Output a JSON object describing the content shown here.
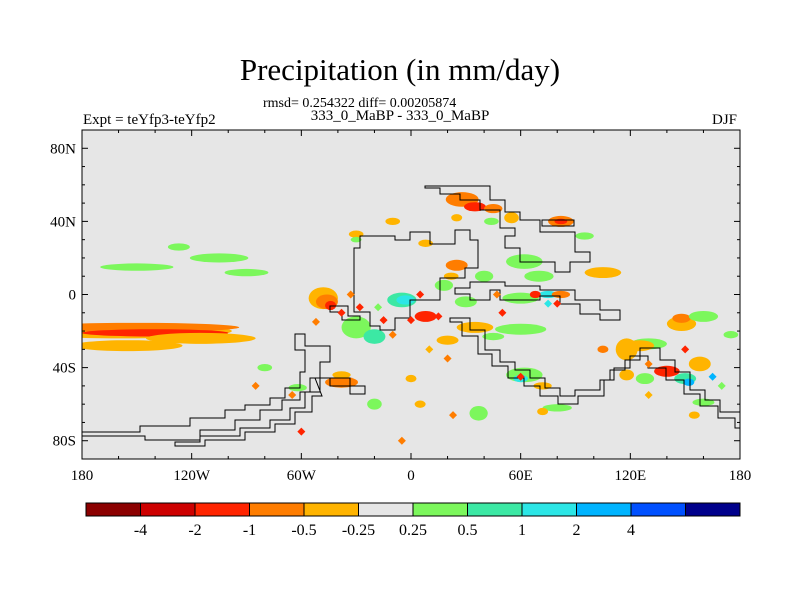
{
  "chart_data": {
    "type": "heatmap",
    "title": "Precipitation (in mm/day)",
    "stats_line": "rmsd= 0.254322 diff= 0.00205874",
    "subtitle": "333_0_MaBP - 333_0_MaBP",
    "left_label": "Expt = teYfp3-teYfp2",
    "right_label": "DJF",
    "xlabel": "",
    "ylabel": "",
    "xlim": [
      -180,
      180
    ],
    "ylim": [
      -90,
      90
    ],
    "x_ticks": [
      {
        "value": -180,
        "label": "180"
      },
      {
        "value": -120,
        "label": "120W"
      },
      {
        "value": -60,
        "label": "60W"
      },
      {
        "value": 0,
        "label": "0"
      },
      {
        "value": 60,
        "label": "60E"
      },
      {
        "value": 120,
        "label": "120E"
      },
      {
        "value": 180,
        "label": "180"
      }
    ],
    "y_ticks": [
      {
        "value": 80,
        "label": "80N"
      },
      {
        "value": 40,
        "label": "40N"
      },
      {
        "value": 0,
        "label": "0"
      },
      {
        "value": -40,
        "label": "40S"
      },
      {
        "value": -80,
        "label": "80S"
      }
    ],
    "background_color": "#e6e6e6",
    "colorbar": {
      "colors": [
        "#8b0000",
        "#cd0000",
        "#ff2400",
        "#ff7d00",
        "#ffb400",
        "#e6e6e6",
        "#7cf75c",
        "#3ce8a4",
        "#2ce6e6",
        "#00b4ff",
        "#0050ff",
        "#00008b"
      ],
      "labels": [
        "-4",
        "-2",
        "-1",
        "-0.5",
        "-0.25",
        "0.25",
        "0.5",
        "1",
        "2",
        "4"
      ]
    },
    "anomaly_patches": [
      {
        "lon": -158,
        "lat": -20,
        "dlon": 60,
        "dlat": 4,
        "color": "#ffb400"
      },
      {
        "lon": -150,
        "lat": -18,
        "dlon": 56,
        "dlat": 2.5,
        "color": "#ff7d00"
      },
      {
        "lon": -140,
        "lat": -21,
        "dlon": 40,
        "dlat": 2,
        "color": "#ff2400"
      },
      {
        "lon": -115,
        "lat": -24,
        "dlon": 30,
        "dlat": 3,
        "color": "#ffb400"
      },
      {
        "lon": -155,
        "lat": -28,
        "dlon": 30,
        "dlat": 3,
        "color": "#ffb400"
      },
      {
        "lon": -150,
        "lat": 15,
        "dlon": 20,
        "dlat": 2,
        "color": "#7cf75c"
      },
      {
        "lon": -105,
        "lat": 20,
        "dlon": 16,
        "dlat": 2.5,
        "color": "#7cf75c"
      },
      {
        "lon": -90,
        "lat": 12,
        "dlon": 12,
        "dlat": 2,
        "color": "#7cf75c"
      },
      {
        "lon": -127,
        "lat": 26,
        "dlon": 6,
        "dlat": 2,
        "color": "#7cf75c"
      },
      {
        "lon": -48,
        "lat": -2,
        "dlon": 8,
        "dlat": 6,
        "color": "#ffb400"
      },
      {
        "lon": -46,
        "lat": -4,
        "dlon": 6,
        "dlat": 4,
        "color": "#ff7d00"
      },
      {
        "lon": -44,
        "lat": -6,
        "dlon": 3,
        "dlat": 2.5,
        "color": "#ff2400"
      },
      {
        "lon": -30,
        "lat": -18,
        "dlon": 8,
        "dlat": 6,
        "color": "#7cf75c"
      },
      {
        "lon": -20,
        "lat": -23,
        "dlon": 6,
        "dlat": 4,
        "color": "#3ce8a4"
      },
      {
        "lon": -5,
        "lat": -3,
        "dlon": 8,
        "dlat": 4,
        "color": "#3ce8a4"
      },
      {
        "lon": -3,
        "lat": -3,
        "dlon": 5,
        "dlat": 2.5,
        "color": "#2ce6e6"
      },
      {
        "lon": 8,
        "lat": -12,
        "dlon": 6,
        "dlat": 3,
        "color": "#ff2400"
      },
      {
        "lon": 18,
        "lat": 5,
        "dlon": 5,
        "dlat": 3,
        "color": "#7cf75c"
      },
      {
        "lon": 25,
        "lat": 16,
        "dlon": 6,
        "dlat": 3,
        "color": "#ff7d00"
      },
      {
        "lon": 22,
        "lat": 10,
        "dlon": 4,
        "dlat": 2,
        "color": "#ffb400"
      },
      {
        "lon": 28,
        "lat": 52,
        "dlon": 9,
        "dlat": 4,
        "color": "#ff7d00"
      },
      {
        "lon": 35,
        "lat": 48,
        "dlon": 6,
        "dlat": 2.5,
        "color": "#ff2400"
      },
      {
        "lon": 45,
        "lat": 47,
        "dlon": 5,
        "dlat": 2.5,
        "color": "#ff7d00"
      },
      {
        "lon": 44,
        "lat": 40,
        "dlon": 4,
        "dlat": 2,
        "color": "#7cf75c"
      },
      {
        "lon": 25,
        "lat": 42,
        "dlon": 3,
        "dlat": 2,
        "color": "#ffb400"
      },
      {
        "lon": 55,
        "lat": 42,
        "dlon": 4,
        "dlat": 3,
        "color": "#ffb400"
      },
      {
        "lon": 82,
        "lat": 40,
        "dlon": 7,
        "dlat": 3,
        "color": "#ff7d00"
      },
      {
        "lon": 82,
        "lat": 40,
        "dlon": 3.5,
        "dlat": 1.5,
        "color": "#ff2400"
      },
      {
        "lon": 95,
        "lat": 32,
        "dlon": 5,
        "dlat": 2,
        "color": "#7cf75c"
      },
      {
        "lon": 105,
        "lat": 12,
        "dlon": 10,
        "dlat": 3,
        "color": "#ffb400"
      },
      {
        "lon": 62,
        "lat": 18,
        "dlon": 10,
        "dlat": 4,
        "color": "#7cf75c"
      },
      {
        "lon": 70,
        "lat": 10,
        "dlon": 8,
        "dlat": 3,
        "color": "#7cf75c"
      },
      {
        "lon": 40,
        "lat": 10,
        "dlon": 5,
        "dlat": 3,
        "color": "#7cf75c"
      },
      {
        "lon": 30,
        "lat": -4,
        "dlon": 6,
        "dlat": 3,
        "color": "#7cf75c"
      },
      {
        "lon": 60,
        "lat": -2,
        "dlon": 10,
        "dlat": 3,
        "color": "#7cf75c"
      },
      {
        "lon": 75,
        "lat": 0,
        "dlon": 5,
        "dlat": 2,
        "color": "#2ce6e6"
      },
      {
        "lon": 82,
        "lat": 0,
        "dlon": 5,
        "dlat": 2,
        "color": "#ff7d00"
      },
      {
        "lon": 68,
        "lat": 0,
        "dlon": 3,
        "dlat": 2,
        "color": "#ff2400"
      },
      {
        "lon": 35,
        "lat": -18,
        "dlon": 10,
        "dlat": 3,
        "color": "#ffb400"
      },
      {
        "lon": 60,
        "lat": -19,
        "dlon": 14,
        "dlat": 3,
        "color": "#7cf75c"
      },
      {
        "lon": 45,
        "lat": -23,
        "dlon": 6,
        "dlat": 2,
        "color": "#7cf75c"
      },
      {
        "lon": 20,
        "lat": -25,
        "dlon": 6,
        "dlat": 2.5,
        "color": "#ffb400"
      },
      {
        "lon": 130,
        "lat": -27,
        "dlon": 10,
        "dlat": 3,
        "color": "#7cf75c"
      },
      {
        "lon": 125,
        "lat": -28,
        "dlon": 8,
        "dlat": 3,
        "color": "#ffb400"
      },
      {
        "lon": 118,
        "lat": -30,
        "dlon": 6,
        "dlat": 6,
        "color": "#ffb400"
      },
      {
        "lon": 148,
        "lat": -16,
        "dlon": 8,
        "dlat": 4,
        "color": "#ffb400"
      },
      {
        "lon": 148,
        "lat": -13,
        "dlon": 5,
        "dlat": 2.5,
        "color": "#ff7d00"
      },
      {
        "lon": 160,
        "lat": -12,
        "dlon": 8,
        "dlat": 3,
        "color": "#7cf75c"
      },
      {
        "lon": 175,
        "lat": -22,
        "dlon": 4,
        "dlat": 2,
        "color": "#7cf75c"
      },
      {
        "lon": 158,
        "lat": -38,
        "dlon": 6,
        "dlat": 4,
        "color": "#ffb400"
      },
      {
        "lon": 140,
        "lat": -42,
        "dlon": 7,
        "dlat": 3,
        "color": "#ff2400"
      },
      {
        "lon": 150,
        "lat": -46,
        "dlon": 6,
        "dlat": 3,
        "color": "#3ce8a4"
      },
      {
        "lon": 152,
        "lat": -48,
        "dlon": 3,
        "dlat": 2,
        "color": "#00b4ff"
      },
      {
        "lon": 128,
        "lat": -46,
        "dlon": 5,
        "dlat": 3,
        "color": "#7cf75c"
      },
      {
        "lon": 118,
        "lat": -44,
        "dlon": 4,
        "dlat": 3,
        "color": "#ffb400"
      },
      {
        "lon": 160,
        "lat": -59,
        "dlon": 6,
        "dlat": 2,
        "color": "#7cf75c"
      },
      {
        "lon": 155,
        "lat": -66,
        "dlon": 3,
        "dlat": 2,
        "color": "#ffb400"
      },
      {
        "lon": 62,
        "lat": -44,
        "dlon": 10,
        "dlat": 4,
        "color": "#7cf75c"
      },
      {
        "lon": 60,
        "lat": -46,
        "dlon": 4,
        "dlat": 2,
        "color": "#2ce6e6"
      },
      {
        "lon": 72,
        "lat": -50,
        "dlon": 5,
        "dlat": 2,
        "color": "#ffb400"
      },
      {
        "lon": 80,
        "lat": -62,
        "dlon": 8,
        "dlat": 2,
        "color": "#7cf75c"
      },
      {
        "lon": 72,
        "lat": -64,
        "dlon": 3,
        "dlat": 2,
        "color": "#ffb400"
      },
      {
        "lon": 37,
        "lat": -65,
        "dlon": 5,
        "dlat": 4,
        "color": "#7cf75c"
      },
      {
        "lon": -80,
        "lat": -40,
        "dlon": 4,
        "dlat": 2,
        "color": "#7cf75c"
      },
      {
        "lon": -62,
        "lat": -51,
        "dlon": 5,
        "dlat": 2,
        "color": "#7cf75c"
      },
      {
        "lon": -38,
        "lat": -48,
        "dlon": 9,
        "dlat": 3,
        "color": "#ff7d00"
      },
      {
        "lon": -38,
        "lat": -44,
        "dlon": 5,
        "dlat": 2,
        "color": "#ffb400"
      },
      {
        "lon": -20,
        "lat": -60,
        "dlon": 4,
        "dlat": 3,
        "color": "#7cf75c"
      },
      {
        "lon": 0,
        "lat": -46,
        "dlon": 3,
        "dlat": 2,
        "color": "#ffb400"
      },
      {
        "lon": 5,
        "lat": -60,
        "dlon": 3,
        "dlat": 2,
        "color": "#ffb400"
      },
      {
        "lon": -10,
        "lat": 40,
        "dlon": 4,
        "dlat": 2,
        "color": "#ffb400"
      },
      {
        "lon": -30,
        "lat": 33,
        "dlon": 4,
        "dlat": 2,
        "color": "#ffb400"
      },
      {
        "lon": 8,
        "lat": 28,
        "dlon": 4,
        "dlat": 2,
        "color": "#ffb400"
      },
      {
        "lon": -30,
        "lat": 30,
        "dlon": 3,
        "dlat": 1.5,
        "color": "#7cf75c"
      },
      {
        "lon": 105,
        "lat": -30,
        "dlon": 3,
        "dlat": 2,
        "color": "#ff7d00"
      }
    ],
    "diamond_markers": [
      {
        "lon": -52,
        "lat": -15,
        "color": "#ff7d00"
      },
      {
        "lon": -38,
        "lat": -10,
        "color": "#ff2400"
      },
      {
        "lon": -33,
        "lat": 0,
        "color": "#ff7d00"
      },
      {
        "lon": -28,
        "lat": -7,
        "color": "#ff2400"
      },
      {
        "lon": -18,
        "lat": -7,
        "color": "#7cf75c"
      },
      {
        "lon": -15,
        "lat": -14,
        "color": "#ff2400"
      },
      {
        "lon": -10,
        "lat": -22,
        "color": "#ff7d00"
      },
      {
        "lon": 0,
        "lat": -14,
        "color": "#ff2400"
      },
      {
        "lon": 5,
        "lat": 0,
        "color": "#ff2400"
      },
      {
        "lon": 15,
        "lat": -12,
        "color": "#ff2400"
      },
      {
        "lon": 10,
        "lat": -30,
        "color": "#ffb400"
      },
      {
        "lon": 20,
        "lat": -35,
        "color": "#ff7d00"
      },
      {
        "lon": 47,
        "lat": 0,
        "color": "#ff7d00"
      },
      {
        "lon": 50,
        "lat": -10,
        "color": "#ff2400"
      },
      {
        "lon": 75,
        "lat": -5,
        "color": "#2ce6e6"
      },
      {
        "lon": 80,
        "lat": -5,
        "color": "#ff2400"
      },
      {
        "lon": 60,
        "lat": -45,
        "color": "#ff2400"
      },
      {
        "lon": 165,
        "lat": -45,
        "color": "#00b4ff"
      },
      {
        "lon": 130,
        "lat": -55,
        "color": "#ffb400"
      },
      {
        "lon": 130,
        "lat": -38,
        "color": "#ff7d00"
      },
      {
        "lon": 150,
        "lat": -30,
        "color": "#ff2400"
      },
      {
        "lon": 170,
        "lat": -50,
        "color": "#7cf75c"
      },
      {
        "lon": 35,
        "lat": -64,
        "color": "#7cf75c"
      },
      {
        "lon": 23,
        "lat": -66,
        "color": "#ff7d00"
      },
      {
        "lon": -5,
        "lat": -80,
        "color": "#ff7d00"
      },
      {
        "lon": -60,
        "lat": -75,
        "color": "#ff2400"
      },
      {
        "lon": -65,
        "lat": -55,
        "color": "#ff7d00"
      },
      {
        "lon": -85,
        "lat": -50,
        "color": "#ff7d00"
      }
    ],
    "coastlines": [
      {
        "lon": -45,
        "lat": 22,
        "dlon": 25,
        "dlat": 2,
        "color": "#000"
      },
      {
        "lon": -60,
        "lat": 0,
        "dlon": 60,
        "dlat": 1,
        "color": "#000"
      }
    ]
  }
}
